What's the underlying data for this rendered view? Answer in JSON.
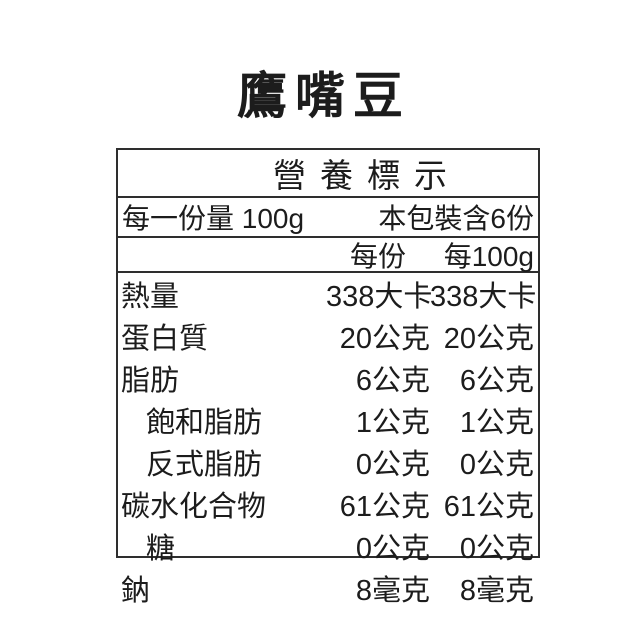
{
  "product": {
    "title": "鷹嘴豆"
  },
  "nutrition_label": {
    "header": "營養標示",
    "serving_info": {
      "serving_size": "每一份量 100g",
      "servings_per_package": "本包裝含6份"
    },
    "columns": {
      "per_serving": "每份",
      "per_100g": "每100g"
    },
    "rows": [
      {
        "label": "熱量",
        "indent": false,
        "per_serving": "338大卡",
        "per_100g": "338大卡"
      },
      {
        "label": "蛋白質",
        "indent": false,
        "per_serving": "20公克",
        "per_100g": "20公克"
      },
      {
        "label": "脂肪",
        "indent": false,
        "per_serving": "6公克",
        "per_100g": "6公克"
      },
      {
        "label": "飽和脂肪",
        "indent": true,
        "per_serving": "1公克",
        "per_100g": "1公克"
      },
      {
        "label": "反式脂肪",
        "indent": true,
        "per_serving": "0公克",
        "per_100g": "0公克"
      },
      {
        "label": "碳水化合物",
        "indent": false,
        "per_serving": "61公克",
        "per_100g": "61公克"
      },
      {
        "label": "糖",
        "indent": true,
        "per_serving": "0公克",
        "per_100g": "0公克"
      },
      {
        "label": "鈉",
        "indent": false,
        "per_serving": "8毫克",
        "per_100g": "8毫克"
      }
    ],
    "colors": {
      "text": "#1c1c1c",
      "border": "#2e2e2e",
      "background": "#ffffff"
    }
  }
}
